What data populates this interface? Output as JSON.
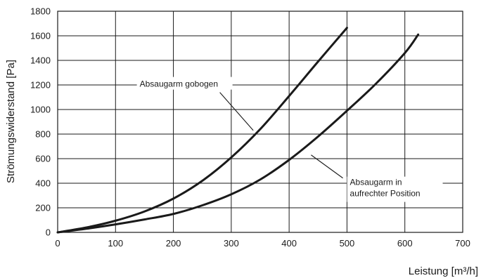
{
  "chart_data": {
    "type": "line",
    "ylabel": "Strömungswiderstand [Pa]",
    "xlabel": "Leistung [m³/h]",
    "xlim": [
      0,
      700
    ],
    "ylim": [
      0,
      1800
    ],
    "xticks": [
      0,
      100,
      200,
      300,
      400,
      500,
      600,
      700
    ],
    "yticks": [
      0,
      200,
      400,
      600,
      800,
      1000,
      1200,
      1400,
      1600,
      1800
    ],
    "grid": true,
    "series": [
      {
        "name": "Absaugarm gobogen",
        "x": [
          0,
          50,
          100,
          150,
          200,
          250,
          300,
          350,
          400,
          450,
          500
        ],
        "y": [
          0,
          40,
          95,
          170,
          275,
          420,
          610,
          840,
          1110,
          1390,
          1665
        ]
      },
      {
        "name": "Absaugarm in aufrechter Position",
        "x": [
          0,
          50,
          100,
          150,
          200,
          250,
          300,
          350,
          400,
          450,
          500,
          550,
          600,
          623
        ],
        "y": [
          0,
          30,
          65,
          105,
          150,
          220,
          310,
          430,
          590,
          780,
          990,
          1210,
          1460,
          1610
        ]
      }
    ],
    "annotations": [
      {
        "text": "Absaugarm gobogen",
        "series": 0,
        "x": 307,
        "y": 1185,
        "anchor_x": 338,
        "anchor_y": 830
      },
      {
        "text": [
          "Absaugarm in",
          "aufrechter Position"
        ],
        "series": 1,
        "x": 505,
        "y": 385,
        "anchor_x": 438,
        "anchor_y": 630
      }
    ]
  }
}
